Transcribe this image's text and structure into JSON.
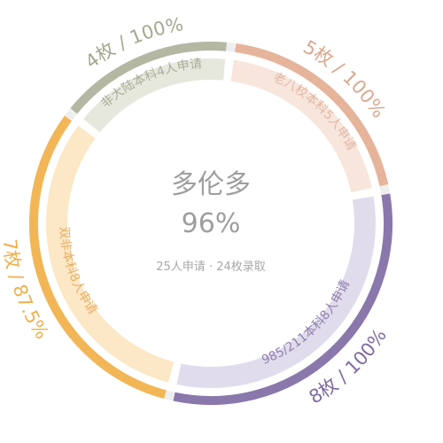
{
  "chart_data": {
    "type": "pie",
    "center": {
      "title": "多伦多",
      "value": "96%",
      "subtitle": "25人申请 · 24枚录取"
    },
    "segments": [
      {
        "category": "老八校本科5人申请",
        "applicants": 5,
        "admitted": 5,
        "outer_label": "5枚 / 100%",
        "admit_rate": 100,
        "ring_color": "#e6b49b",
        "fill_color": "#f8e6dd",
        "text_color": "#dba88e",
        "inner_text_color": "#e2b7a2"
      },
      {
        "category": "985/211本科8人申请",
        "applicants": 8,
        "admitted": 8,
        "outer_label": "8枚 / 100%",
        "admit_rate": 100,
        "ring_color": "#8a77ab",
        "fill_color": "#e1dcec",
        "text_color": "#7f6ca1",
        "inner_text_color": "#8f7fae"
      },
      {
        "category": "双非本科8人申请",
        "applicants": 8,
        "admitted": 7,
        "outer_label": "7枚 / 87.5%",
        "admit_rate": 87.5,
        "ring_color": "#f2b656",
        "fill_color": "#fce7c6",
        "text_color": "#efb04b",
        "inner_text_color": "#e7b062"
      },
      {
        "category": "非大陆本科4人申请",
        "applicants": 4,
        "admitted": 4,
        "outer_label": "4枚 / 100%",
        "admit_rate": 100,
        "ring_color": "#b4b8a3",
        "fill_color": "#e6e8de",
        "text_color": "#a4a98f",
        "inner_text_color": "#aaae98"
      }
    ],
    "gap_color": "#efefef"
  }
}
